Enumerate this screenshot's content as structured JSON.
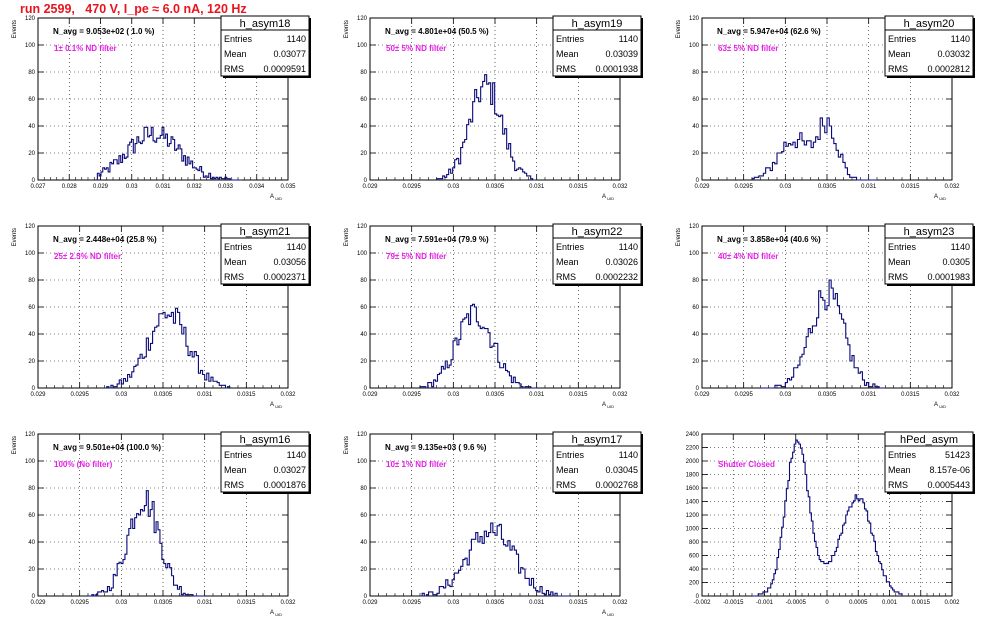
{
  "header": {
    "title": "run 2599,   470 V, I_pe ≈ 6.0 nA, 120 Hz"
  },
  "colors": {
    "title": "#e8141e",
    "line": "#0a0a78",
    "annotation": "#e81be8",
    "axis": "#000000",
    "grid": "#000000"
  },
  "chart_data": [
    {
      "type": "histogram",
      "name": "h_asym18",
      "stats": {
        "entries_label": "Entries",
        "entries": "1140",
        "mean_label": "Mean",
        "mean": "0.03077",
        "rms_label": "RMS",
        "rms": "0.0009591"
      },
      "navg": "N_avg = 9.053e+02 ( 1.0 %)",
      "annotation": "1± 0.1% ND filter",
      "ylabel": "Events",
      "xlabel": "A_UID",
      "xlim": [
        0.027,
        0.035
      ],
      "ylim": [
        0,
        120
      ],
      "xticks": [
        "0.027",
        "0.028",
        "0.029",
        "0.03",
        "0.031",
        "0.032",
        "0.033",
        "0.034",
        "0.035"
      ],
      "yticks": [
        "0",
        "20",
        "40",
        "60",
        "80",
        "100",
        "120"
      ],
      "gaussian": [
        {
          "mean": 0.0307,
          "sigma": 0.00085,
          "peak": 34
        }
      ],
      "range": [
        0.0289,
        0.0335
      ],
      "bins": 80
    },
    {
      "type": "histogram",
      "name": "h_asym19",
      "stats": {
        "entries_label": "Entries",
        "entries": "1140",
        "mean_label": "Mean",
        "mean": "0.03039",
        "rms_label": "RMS",
        "rms": "0.0001938"
      },
      "navg": "N_avg = 4.801e+04 (50.5 %)",
      "annotation": "50± 5% ND filter",
      "ylabel": "Events",
      "xlabel": "A_UID",
      "xlim": [
        0.029,
        0.032
      ],
      "ylim": [
        0,
        120
      ],
      "xticks": [
        "0.029",
        "0.0295",
        "0.03",
        "0.0305",
        "0.031",
        "0.0315",
        "0.032"
      ],
      "yticks": [
        "0",
        "20",
        "40",
        "60",
        "80",
        "100",
        "120"
      ],
      "gaussian": [
        {
          "mean": 0.03039,
          "sigma": 0.00019,
          "peak": 70
        }
      ],
      "range": [
        0.0298,
        0.031
      ],
      "bins": 50
    },
    {
      "type": "histogram",
      "name": "h_asym20",
      "stats": {
        "entries_label": "Entries",
        "entries": "1140",
        "mean_label": "Mean",
        "mean": "0.03032",
        "rms_label": "RMS",
        "rms": "0.0002812"
      },
      "navg": "N_avg = 5.947e+04 (62.6 %)",
      "annotation": "63± 5% ND filter",
      "ylabel": "Events",
      "xlabel": "A_UID",
      "xlim": [
        0.029,
        0.032
      ],
      "ylim": [
        0,
        120
      ],
      "xticks": [
        "0.029",
        "0.0295",
        "0.03",
        "0.0305",
        "0.031",
        "0.0315",
        "0.032"
      ],
      "yticks": [
        "0",
        "20",
        "40",
        "60",
        "80",
        "100",
        "120"
      ],
      "gaussian": [
        {
          "mean": 0.0301,
          "sigma": 0.00018,
          "peak": 30
        },
        {
          "mean": 0.03051,
          "sigma": 0.00012,
          "peak": 42
        }
      ],
      "range": [
        0.0296,
        0.0311
      ],
      "bins": 55
    },
    {
      "type": "histogram",
      "name": "h_asym21",
      "stats": {
        "entries_label": "Entries",
        "entries": "1140",
        "mean_label": "Mean",
        "mean": "0.03056",
        "rms_label": "RMS",
        "rms": "0.0002371"
      },
      "navg": "N_avg = 2.448e+04 (25.8 %)",
      "annotation": "25± 2.5% ND filter",
      "ylabel": "Events",
      "xlabel": "A_UID",
      "xlim": [
        0.029,
        0.032
      ],
      "ylim": [
        0,
        120
      ],
      "xticks": [
        "0.029",
        "0.0295",
        "0.03",
        "0.0305",
        "0.031",
        "0.0315",
        "0.032"
      ],
      "yticks": [
        "0",
        "20",
        "40",
        "60",
        "80",
        "100",
        "120"
      ],
      "gaussian": [
        {
          "mean": 0.03056,
          "sigma": 0.00024,
          "peak": 55
        }
      ],
      "range": [
        0.0298,
        0.0313
      ],
      "bins": 60
    },
    {
      "type": "histogram",
      "name": "h_asym22",
      "stats": {
        "entries_label": "Entries",
        "entries": "1140",
        "mean_label": "Mean",
        "mean": "0.03026",
        "rms_label": "RMS",
        "rms": "0.0002232"
      },
      "navg": "N_avg = 7.591e+04 (79.9 %)",
      "annotation": "79± 5% ND filter",
      "ylabel": "Events",
      "xlabel": "A_UID",
      "xlim": [
        0.029,
        0.032
      ],
      "ylim": [
        0,
        120
      ],
      "xticks": [
        "0.029",
        "0.0295",
        "0.03",
        "0.0305",
        "0.031",
        "0.0315",
        "0.032"
      ],
      "yticks": [
        "0",
        "20",
        "40",
        "60",
        "80",
        "100",
        "120"
      ],
      "gaussian": [
        {
          "mean": 0.03026,
          "sigma": 0.00022,
          "peak": 55
        }
      ],
      "range": [
        0.0296,
        0.031
      ],
      "bins": 60
    },
    {
      "type": "histogram",
      "name": "h_asym23",
      "stats": {
        "entries_label": "Entries",
        "entries": "1140",
        "mean_label": "Mean",
        "mean": "0.0305",
        "rms_label": "RMS",
        "rms": "0.0001983"
      },
      "navg": "N_avg = 3.858e+04 (40.6 %)",
      "annotation": "40± 4% ND filter",
      "ylabel": "Events",
      "xlabel": "A_UID",
      "xlim": [
        0.029,
        0.032
      ],
      "ylim": [
        0,
        120
      ],
      "xticks": [
        "0.029",
        "0.0295",
        "0.03",
        "0.0305",
        "0.031",
        "0.0315",
        "0.032"
      ],
      "yticks": [
        "0",
        "20",
        "40",
        "60",
        "80",
        "100",
        "120"
      ],
      "gaussian": [
        {
          "mean": 0.0305,
          "sigma": 0.0002,
          "peak": 70
        }
      ],
      "range": [
        0.0297,
        0.0312
      ],
      "bins": 60
    },
    {
      "type": "histogram",
      "name": "h_asym16",
      "stats": {
        "entries_label": "Entries",
        "entries": "1140",
        "mean_label": "Mean",
        "mean": "0.03027",
        "rms_label": "RMS",
        "rms": "0.0001876"
      },
      "navg": "N_avg = 9.501e+04 (100.0 %)",
      "annotation": "100% (No filter)",
      "ylabel": "Events",
      "xlabel": "A_UID",
      "xlim": [
        0.029,
        0.032
      ],
      "ylim": [
        0,
        120
      ],
      "xticks": [
        "0.029",
        "0.0295",
        "0.03",
        "0.0305",
        "0.031",
        "0.0315",
        "0.032"
      ],
      "yticks": [
        "0",
        "20",
        "40",
        "60",
        "80",
        "100",
        "120"
      ],
      "gaussian": [
        {
          "mean": 0.03027,
          "sigma": 0.00019,
          "peak": 72
        }
      ],
      "range": [
        0.0296,
        0.031
      ],
      "bins": 60
    },
    {
      "type": "histogram",
      "name": "h_asym17",
      "stats": {
        "entries_label": "Entries",
        "entries": "1140",
        "mean_label": "Mean",
        "mean": "0.03045",
        "rms_label": "RMS",
        "rms": "0.0002768"
      },
      "navg": "N_avg = 9.135e+03 ( 9.6 %)",
      "annotation": "10± 1% ND filter",
      "ylabel": "Events",
      "xlabel": "A_UID",
      "xlim": [
        0.029,
        0.032
      ],
      "ylim": [
        0,
        120
      ],
      "xticks": [
        "0.029",
        "0.0295",
        "0.03",
        "0.0305",
        "0.031",
        "0.0315",
        "0.032"
      ],
      "yticks": [
        "0",
        "20",
        "40",
        "60",
        "80",
        "100",
        "120"
      ],
      "gaussian": [
        {
          "mean": 0.03045,
          "sigma": 0.00028,
          "peak": 48
        }
      ],
      "range": [
        0.0296,
        0.0314
      ],
      "bins": 70
    },
    {
      "type": "histogram",
      "name": "hPed_asym",
      "stats": {
        "entries_label": "Entries",
        "entries": "51423",
        "mean_label": "Mean",
        "mean": "8.157e-06",
        "rms_label": "RMS",
        "rms": "0.0005443"
      },
      "navg": "",
      "annotation": "Shutter Closed",
      "ylabel": "",
      "xlabel": "",
      "xlim": [
        -0.002,
        0.002
      ],
      "ylim": [
        0,
        2400
      ],
      "xticks": [
        "-0.002",
        "-0.0015",
        "-0.001",
        "-0.0005",
        "0",
        "0.0005",
        "0.001",
        "0.0015",
        "0.002"
      ],
      "yticks": [
        "0",
        "200",
        "400",
        "600",
        "800",
        "1000",
        "1200",
        "1400",
        "1600",
        "1800",
        "2000",
        "2200",
        "2400"
      ],
      "gaussian": [
        {
          "mean": -0.00048,
          "sigma": 0.00018,
          "peak": 2200
        },
        {
          "mean": 0.0005,
          "sigma": 0.00024,
          "peak": 1350
        },
        {
          "mean": 0.0,
          "sigma": 0.0004,
          "peak": 250
        }
      ],
      "range": [
        -0.0012,
        0.0012
      ],
      "bins": 96
    }
  ]
}
